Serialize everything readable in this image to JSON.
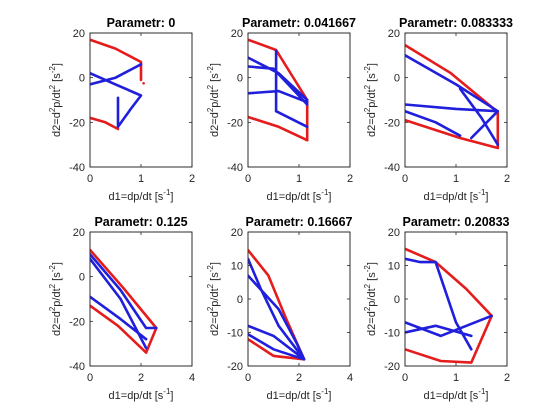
{
  "chart_data": [
    {
      "type": "line",
      "title": "Parametr: 0",
      "xlabel": [
        "d1=dp/dt [s",
        "-1",
        "]"
      ],
      "ylabel": [
        "d2=d",
        "2",
        "p/dt",
        "2",
        " [s",
        "-2",
        "]"
      ],
      "xlim": [
        0,
        2
      ],
      "ylim": [
        -40,
        20
      ],
      "xticks": [
        0,
        1,
        2
      ],
      "yticks": [
        -40,
        -20,
        0,
        20
      ],
      "series": [
        {
          "color": "#e51c1c",
          "x": [
            0,
            0.5,
            1,
            null,
            0,
            0.3,
            0.55,
            null,
            1,
            1,
            null,
            1.05
          ],
          "y": [
            17,
            13,
            7,
            null,
            -18,
            -20,
            -23,
            null,
            7,
            -1,
            null,
            -2.5
          ]
        },
        {
          "color": "#1f1fdc",
          "x": [
            0,
            0.5,
            1,
            null,
            0,
            0.5,
            1,
            null,
            0.55,
            0.55,
            null,
            0.55,
            0.8,
            1
          ],
          "y": [
            2,
            -3,
            -8,
            null,
            -3,
            0,
            6,
            null,
            -9,
            -22,
            null,
            -22,
            -14,
            -8
          ]
        }
      ]
    },
    {
      "type": "line",
      "title": "Parametr: 0.041667",
      "xlabel": [
        "d1=dp/dt [s",
        "-1",
        "]"
      ],
      "ylabel": [
        "d2=d",
        "2",
        "p/dt",
        "2",
        " [s",
        "-2",
        "]"
      ],
      "xlim": [
        0,
        2
      ],
      "ylim": [
        -40,
        20
      ],
      "xticks": [
        0,
        1,
        2
      ],
      "yticks": [
        -40,
        -20,
        0,
        20
      ],
      "series": [
        {
          "color": "#e51c1c",
          "x": [
            0,
            0.55,
            1.16,
            1.16,
            null,
            0,
            0.6,
            1.16
          ],
          "y": [
            17,
            12.4,
            -10,
            -28,
            null,
            -17.6,
            -22,
            -28
          ]
        },
        {
          "color": "#1f1fdc",
          "x": [
            0,
            0.6,
            1.16,
            null,
            0,
            0.5,
            1.16,
            null,
            0,
            0.6,
            1.16,
            null,
            0.55,
            0.55,
            null,
            0.55,
            1.16
          ],
          "y": [
            9,
            2,
            -10,
            null,
            5,
            4,
            -12,
            null,
            -7,
            -6,
            -11,
            null,
            12,
            -15,
            null,
            -15,
            -22
          ]
        }
      ]
    },
    {
      "type": "line",
      "title": "Parametr: 0.083333",
      "xlabel": [
        "d1=dp/dt [s",
        "-1",
        "]"
      ],
      "ylabel": [
        "d2=d",
        "2",
        "p/dt",
        "2",
        " [s",
        "-2",
        "]"
      ],
      "xlim": [
        0,
        2
      ],
      "ylim": [
        -40,
        20
      ],
      "xticks": [
        0,
        1,
        2
      ],
      "yticks": [
        -40,
        -20,
        0,
        20
      ],
      "series": [
        {
          "color": "#e51c1c",
          "x": [
            0,
            0.9,
            1.82,
            1.82,
            null,
            0,
            1.08,
            1.82
          ],
          "y": [
            14.6,
            2,
            -15.4,
            -31.5,
            null,
            -19,
            -27,
            -31.5
          ]
        },
        {
          "color": "#1f1fdc",
          "x": [
            0,
            1,
            1.82,
            null,
            0,
            1,
            1.82,
            null,
            0,
            0.6,
            1.08,
            null,
            1.08,
            1.5,
            1.82,
            null,
            1.3,
            1.82
          ],
          "y": [
            10,
            -3,
            -15,
            null,
            -12,
            -14,
            -15,
            null,
            -15,
            -20,
            -26,
            null,
            -5,
            -18,
            -30,
            null,
            -27,
            -15
          ]
        }
      ]
    },
    {
      "type": "line",
      "title": "Parametr: 0.125",
      "xlabel": [
        "d1=dp/dt [s",
        "-1",
        "]"
      ],
      "ylabel": [
        "d2=d",
        "2",
        "p/dt",
        "2",
        " [s",
        "-2",
        "]"
      ],
      "xlim": [
        0,
        4
      ],
      "ylim": [
        -40,
        20
      ],
      "xticks": [
        0,
        2,
        4
      ],
      "yticks": [
        -40,
        -20,
        0,
        20
      ],
      "series": [
        {
          "color": "#e51c1c",
          "x": [
            0,
            1.3,
            2.6,
            2.2,
            null,
            0,
            1.1,
            2.2
          ],
          "y": [
            12,
            -5,
            -23,
            -34,
            null,
            -13,
            -22,
            -34
          ]
        },
        {
          "color": "#1f1fdc",
          "x": [
            0,
            1.2,
            2.2,
            2.6,
            null,
            0,
            1.2,
            2.2,
            null,
            0,
            1.2,
            2.2
          ],
          "y": [
            10,
            -6,
            -23,
            -23,
            null,
            8,
            -10,
            -32,
            null,
            -9,
            -19,
            -28
          ]
        }
      ]
    },
    {
      "type": "line",
      "title": "Parametr: 0.16667",
      "xlabel": [
        "d1=dp/dt [s",
        "-1",
        "]"
      ],
      "ylabel": [
        "d2=d",
        "2",
        "p/dt",
        "2",
        " [s",
        "-2",
        "]"
      ],
      "xlim": [
        0,
        4
      ],
      "ylim": [
        -20,
        20
      ],
      "xticks": [
        0,
        2,
        4
      ],
      "yticks": [
        -20,
        -10,
        0,
        10,
        20
      ],
      "series": [
        {
          "color": "#e51c1c",
          "x": [
            0,
            0.8,
            1.5,
            2.2,
            null,
            0,
            1,
            2.2
          ],
          "y": [
            14.6,
            7,
            -6,
            -18,
            null,
            -12,
            -17,
            -18
          ]
        },
        {
          "color": "#1f1fdc",
          "x": [
            0,
            0.5,
            1.2,
            2.2,
            null,
            0,
            1.2,
            1.9,
            2.2,
            null,
            0,
            1,
            2.2,
            null,
            0,
            1,
            2.2
          ],
          "y": [
            12,
            3,
            -8,
            -18,
            null,
            7,
            -3,
            -13,
            -18,
            null,
            -8,
            -11,
            -18,
            null,
            -10.5,
            -15,
            -18
          ]
        }
      ]
    },
    {
      "type": "line",
      "title": "Parametr: 0.20833",
      "xlabel": [
        "d1=dp/dt [s",
        "-1",
        "]"
      ],
      "ylabel": [
        "d2=d",
        "2",
        "p/dt",
        "2",
        " [s",
        "-2",
        "]"
      ],
      "xlim": [
        0,
        2
      ],
      "ylim": [
        -20,
        20
      ],
      "xticks": [
        0,
        1,
        2
      ],
      "yticks": [
        -20,
        -10,
        0,
        10,
        20
      ],
      "series": [
        {
          "color": "#e51c1c",
          "x": [
            0,
            0.6,
            1.2,
            1.7,
            null,
            0,
            0.7,
            1.3,
            1.7
          ],
          "y": [
            15,
            11,
            3,
            -5,
            null,
            -15,
            -18.5,
            -19,
            -5
          ]
        },
        {
          "color": "#1f1fdc",
          "x": [
            0,
            0.3,
            0.6,
            null,
            0,
            0.7,
            1.7,
            null,
            0,
            0.6,
            1.3,
            null,
            0.6,
            1,
            1.3
          ],
          "y": [
            12,
            11,
            11,
            null,
            -7,
            -11,
            -5,
            null,
            -10,
            -8,
            -11,
            null,
            11,
            -7,
            -15
          ]
        }
      ]
    }
  ]
}
